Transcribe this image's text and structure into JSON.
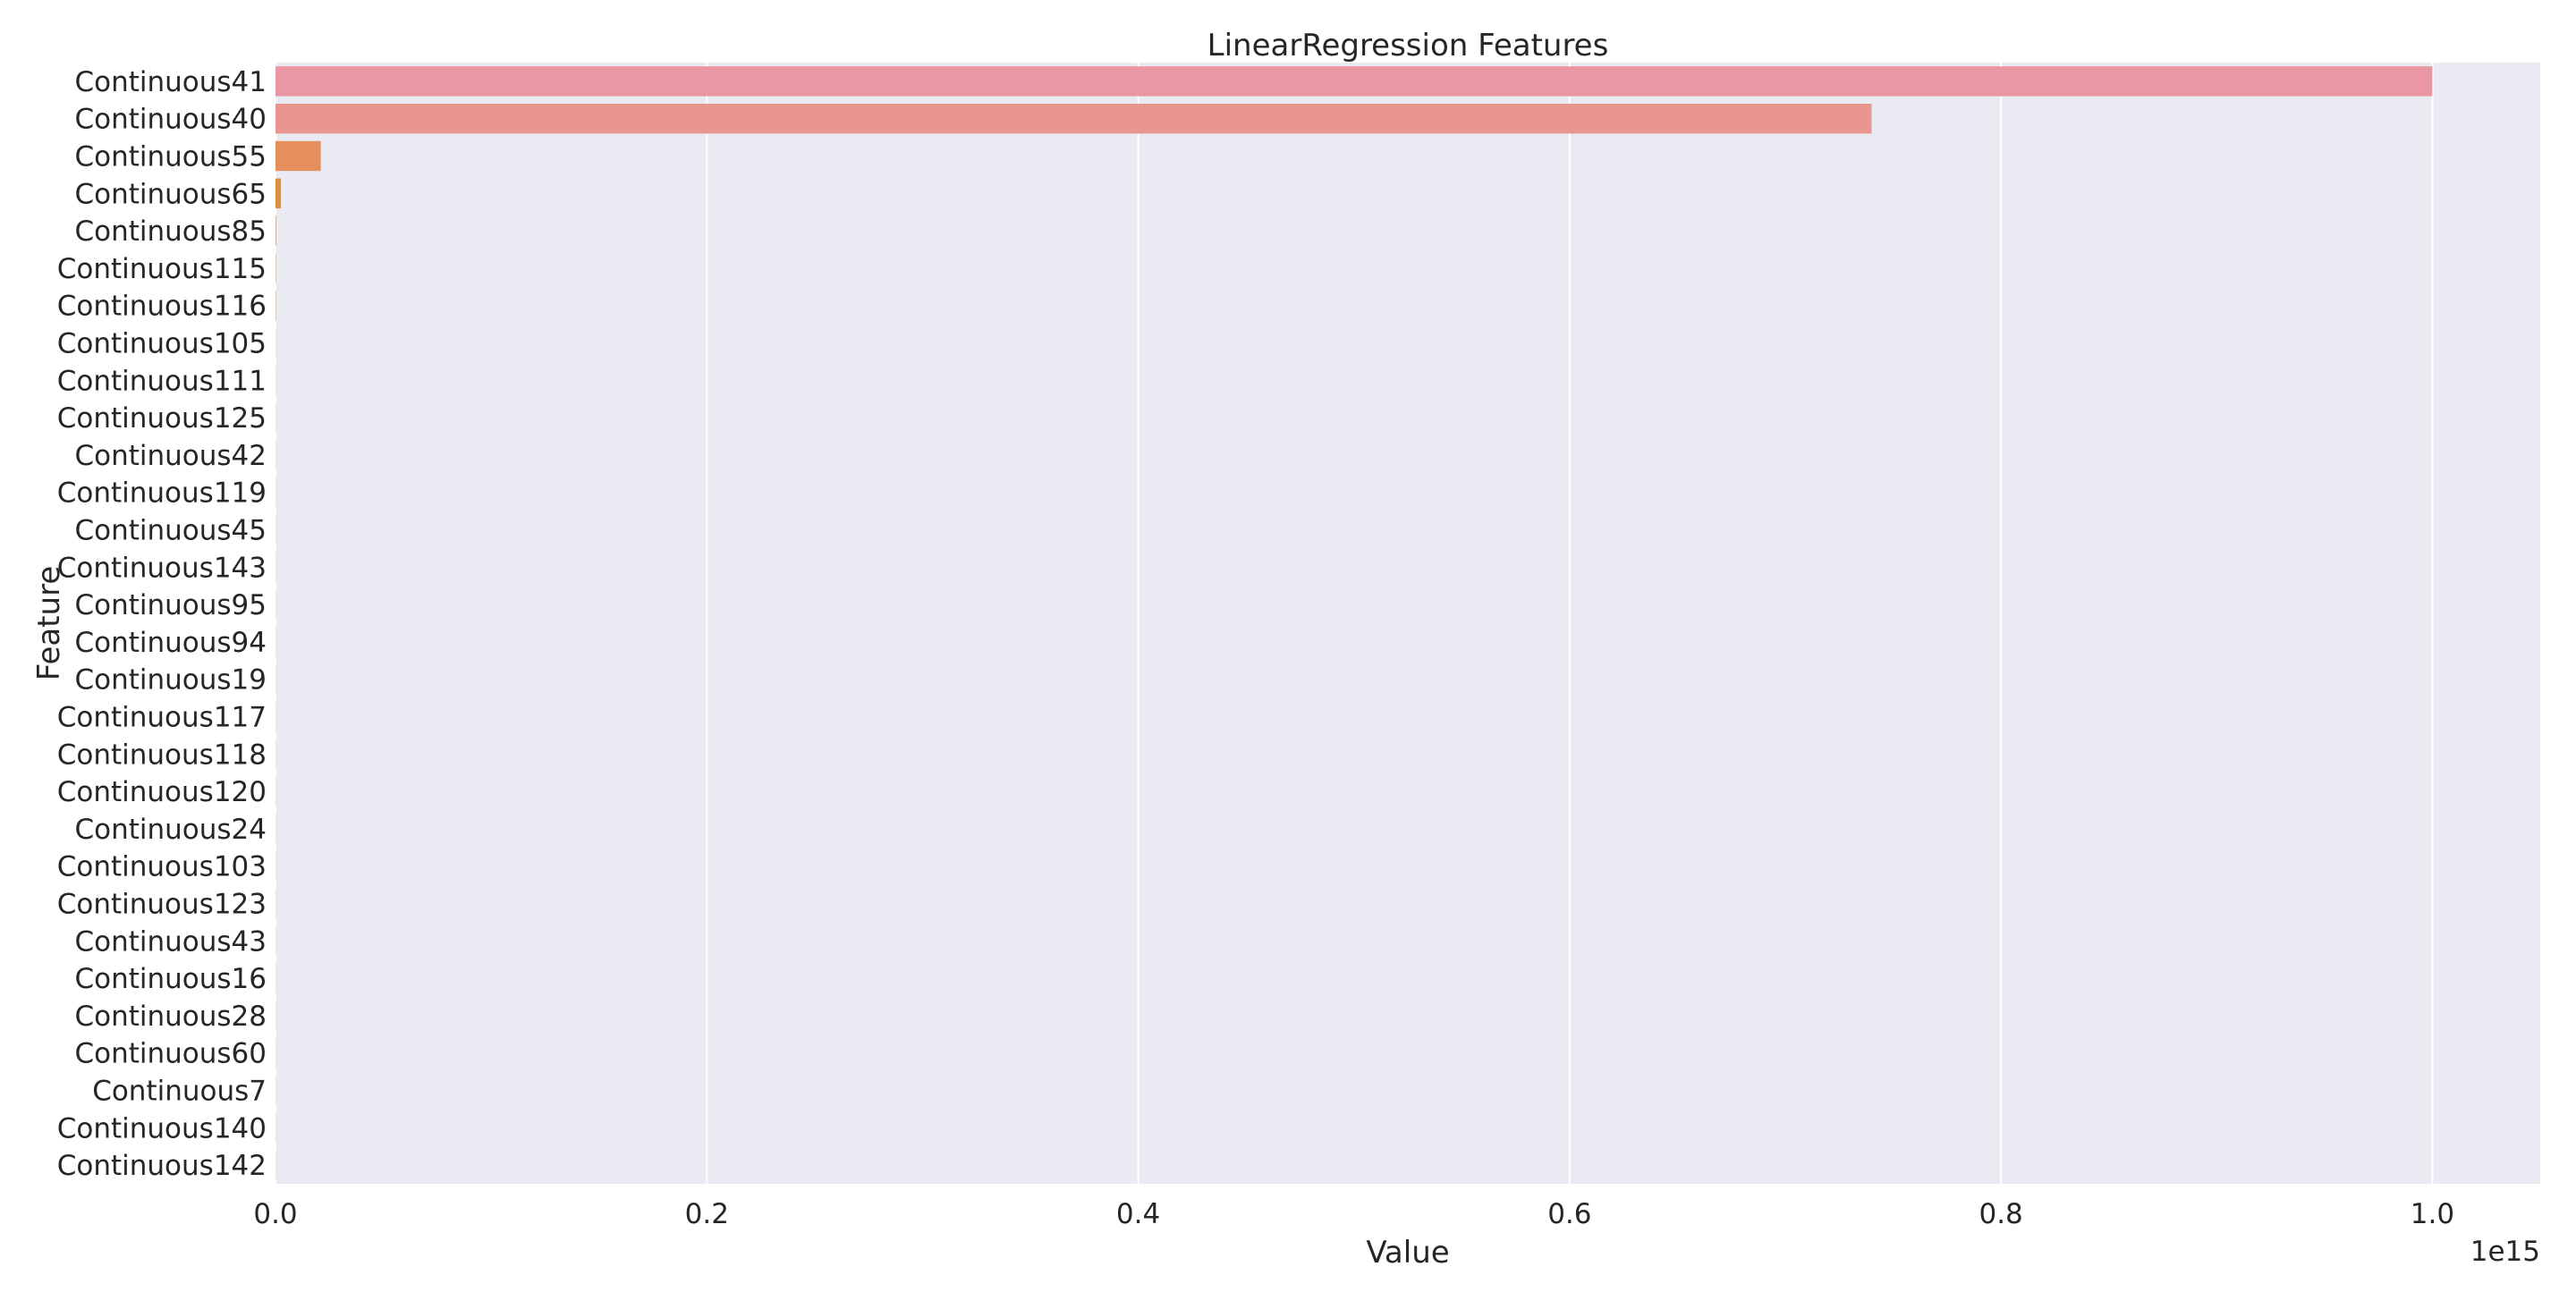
{
  "chart_data": {
    "type": "bar",
    "orientation": "horizontal",
    "title": "LinearRegression Features",
    "xlabel": "Value",
    "ylabel": "Feature",
    "x_offset_label": "1e15",
    "xlim": [
      0,
      1.05
    ],
    "x_ticks": [
      0.0,
      0.2,
      0.4,
      0.6,
      0.8,
      1.0
    ],
    "x_tick_labels": [
      "0.0",
      "0.2",
      "0.4",
      "0.6",
      "0.8",
      "1.0"
    ],
    "grid": true,
    "categories": [
      "Continuous41",
      "Continuous40",
      "Continuous55",
      "Continuous65",
      "Continuous85",
      "Continuous115",
      "Continuous116",
      "Continuous105",
      "Continuous111",
      "Continuous125",
      "Continuous42",
      "Continuous119",
      "Continuous45",
      "Continuous143",
      "Continuous95",
      "Continuous94",
      "Continuous19",
      "Continuous117",
      "Continuous118",
      "Continuous120",
      "Continuous24",
      "Continuous103",
      "Continuous123",
      "Continuous43",
      "Continuous16",
      "Continuous28",
      "Continuous60",
      "Continuous7",
      "Continuous140",
      "Continuous142"
    ],
    "values": [
      1.0,
      0.74,
      0.021,
      0.0025,
      0.0003,
      0.0002,
      0.0002,
      0.0001,
      0.0001,
      0.0001,
      0.0001,
      0.0001,
      0.0001,
      0.0001,
      0.0001,
      0.0001,
      0.0001,
      0.0001,
      0.0001,
      0.0001,
      0.0001,
      0.0001,
      0.0001,
      0.0001,
      0.0001,
      0.0001,
      0.0001,
      0.0001,
      0.0001,
      0.0001
    ],
    "colors": {
      "background": "#eaeaf2",
      "grid": "#ffffff",
      "bars": [
        "#ea96a3",
        "#e9978e",
        "#e58f5c",
        "#de8f3d"
      ]
    }
  }
}
